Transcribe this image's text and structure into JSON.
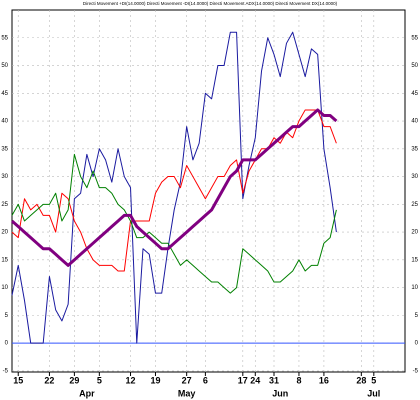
{
  "chart_data": {
    "type": "line",
    "title": "Directi Movement +DI(14.0000) Directi Movement -DI(14.0000) Directi Movement ADX(14.0000) Directi Movement DX(14.0000)",
    "categories": [
      null,
      "15",
      null,
      null,
      null,
      null,
      "22",
      null,
      null,
      null,
      "29",
      null,
      null,
      null,
      "5",
      null,
      null,
      null,
      null,
      "12",
      null,
      null,
      null,
      "19",
      null,
      null,
      null,
      null,
      "27",
      null,
      null,
      "6",
      null,
      null,
      null,
      null,
      null,
      "17",
      null,
      "24",
      null,
      null,
      "31",
      null,
      null,
      null,
      "8",
      null,
      null,
      null,
      "16",
      null,
      null,
      null,
      null,
      null,
      "28",
      null,
      "5",
      null,
      null,
      null,
      null
    ],
    "month_categories": [
      null,
      null,
      null,
      null,
      null,
      null,
      null,
      null,
      null,
      null,
      null,
      null,
      "Apr",
      null,
      null,
      null,
      null,
      null,
      null,
      null,
      null,
      null,
      null,
      null,
      null,
      null,
      null,
      null,
      "May",
      null,
      null,
      null,
      null,
      null,
      null,
      null,
      null,
      null,
      null,
      null,
      null,
      null,
      null,
      "Jun",
      null,
      null,
      null,
      null,
      null,
      null,
      null,
      null,
      null,
      null,
      null,
      null,
      null,
      null,
      "Jul",
      null,
      null,
      null,
      null
    ],
    "series": [
      {
        "color": "#1a1aa0",
        "width": 1,
        "values": [
          8.6,
          14,
          7.7,
          0,
          0,
          0,
          12,
          6,
          4,
          7,
          26,
          27,
          34,
          30,
          35,
          33,
          29,
          35,
          30,
          28,
          0,
          17,
          16,
          9,
          9,
          17,
          24,
          29,
          39,
          33,
          36,
          45,
          44,
          50,
          50,
          56,
          56,
          26,
          32,
          37,
          49,
          55,
          52,
          48,
          54,
          56,
          52,
          48,
          53,
          52,
          35,
          28,
          20,
          null,
          null,
          null,
          null,
          null,
          null,
          null,
          null,
          null,
          null
        ]
      },
      {
        "color": "#ff0000",
        "width": 1,
        "values": [
          20,
          19,
          26,
          24,
          25,
          23,
          23,
          20,
          27,
          26,
          22,
          20,
          17,
          15,
          14,
          14,
          14,
          13,
          13,
          22,
          22,
          22,
          22,
          27,
          29,
          30,
          30,
          28,
          32,
          30,
          28,
          26,
          28,
          30,
          30,
          32,
          33,
          27,
          31,
          33,
          35,
          35,
          37,
          36,
          38,
          37,
          40,
          42,
          42,
          42,
          39,
          39,
          36,
          null,
          null,
          null,
          null,
          null,
          null,
          null,
          null,
          null,
          null
        ]
      },
      {
        "color": "#008000",
        "width": 1,
        "values": [
          23,
          25,
          22,
          23,
          24,
          25,
          25,
          27,
          22,
          24,
          34,
          30,
          28,
          31,
          28,
          28,
          27,
          25,
          24,
          22,
          19,
          19,
          20,
          19,
          18,
          18,
          16,
          14,
          15,
          14,
          13,
          12,
          11,
          11,
          10,
          9,
          10,
          17,
          16,
          15,
          14,
          13,
          11,
          11,
          12,
          13,
          15,
          13,
          14,
          14,
          18,
          19,
          24,
          null,
          null,
          null,
          null,
          null,
          null,
          null,
          null,
          null,
          null
        ]
      },
      {
        "color": "#800080",
        "width": 3,
        "values": [
          22,
          21,
          20,
          19,
          18,
          17,
          17,
          16,
          15,
          14,
          15,
          16,
          17,
          18,
          19,
          20,
          21,
          22,
          23,
          23,
          21,
          20,
          19,
          18,
          17,
          17,
          18,
          19,
          20,
          21,
          22,
          23,
          24,
          26,
          28,
          30,
          31,
          33,
          33,
          33,
          34,
          35,
          36,
          37,
          38,
          39,
          39,
          40,
          41,
          42,
          41,
          41,
          40,
          null,
          null,
          null,
          null,
          null,
          null,
          null,
          null,
          null,
          null
        ]
      }
    ],
    "ylim": [
      -5.2,
      60
    ],
    "yticks": [
      -5,
      0,
      5,
      10,
      15,
      20,
      25,
      30,
      35,
      40,
      45,
      50,
      55
    ],
    "reference_line": 0,
    "reference_color": "#3355ff",
    "grid": true
  }
}
